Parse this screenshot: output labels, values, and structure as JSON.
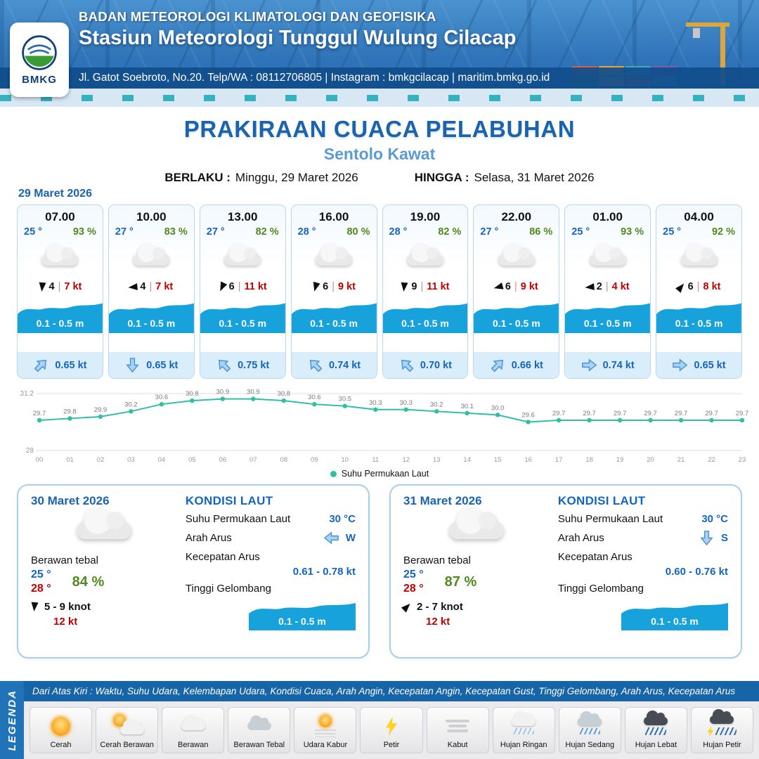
{
  "header": {
    "agency": "BADAN METEOROLOGI KLIMATOLOGI DAN GEOFISIKA",
    "station": "Stasiun Meteorologi Tunggul Wulung Cilacap",
    "address": "Jl. Gatot Soebroto, No.20. Telp/WA : 08112706805 | Instagram : bmkgcilacap | maritim.bmkg.go.id",
    "logo_text": "BMKG"
  },
  "title": {
    "main": "PRAKIRAAN CUACA PELABUHAN",
    "subtitle": "Sentolo Kawat",
    "valid_label": "BERLAKU :",
    "valid_value": "Minggu, 29 Maret 2026",
    "until_label": "HINGGA :",
    "until_value": "Selasa, 31 Maret 2026"
  },
  "colors": {
    "brand_blue": "#1b63ad",
    "subtitle_blue": "#5b9bd5",
    "value_blue": "#1565c0",
    "humidity_green": "#4f8a1e",
    "gust_red": "#c00000",
    "wave_blue": "#17a2dc",
    "current_arrow_blue": "#a8d4f2",
    "sst_line_teal": "#2fbfa4",
    "header_blue": "#2a6cb3"
  },
  "forecast": {
    "date": "29 Maret 2026",
    "cards": [
      {
        "time": "07.00",
        "temp": "25 °",
        "humidity": "93 %",
        "wind_speed": "4",
        "wind_gust": "7 kt",
        "wave_height": "0.1 - 0.5 m",
        "current_speed": "0.65 kt",
        "wind_dir_deg": 185,
        "current_dir_deg": -45
      },
      {
        "time": "10.00",
        "temp": "27 °",
        "humidity": "83 %",
        "wind_speed": "4",
        "wind_gust": "7 kt",
        "wave_height": "0.1 - 0.5 m",
        "current_speed": "0.65 kt",
        "wind_dir_deg": 265,
        "current_dir_deg": 90
      },
      {
        "time": "13.00",
        "temp": "27 °",
        "humidity": "82 %",
        "wind_speed": "6",
        "wind_gust": "11 kt",
        "wave_height": "0.1 - 0.5 m",
        "current_speed": "0.75 kt",
        "wind_dir_deg": 205,
        "current_dir_deg": -135
      },
      {
        "time": "16.00",
        "temp": "28 °",
        "humidity": "80 %",
        "wind_speed": "6",
        "wind_gust": "9 kt",
        "wave_height": "0.1 - 0.5 m",
        "current_speed": "0.74 kt",
        "wind_dir_deg": 195,
        "current_dir_deg": -135
      },
      {
        "time": "19.00",
        "temp": "28 °",
        "humidity": "82 %",
        "wind_speed": "9",
        "wind_gust": "11 kt",
        "wave_height": "0.1 - 0.5 m",
        "current_speed": "0.70 kt",
        "wind_dir_deg": 185,
        "current_dir_deg": -135
      },
      {
        "time": "22.00",
        "temp": "27 °",
        "humidity": "86 %",
        "wind_speed": "6",
        "wind_gust": "9 kt",
        "wave_height": "0.1 - 0.5 m",
        "current_speed": "0.66 kt",
        "wind_dir_deg": 255,
        "current_dir_deg": -45
      },
      {
        "time": "01.00",
        "temp": "25 °",
        "humidity": "93 %",
        "wind_speed": "2",
        "wind_gust": "4 kt",
        "wave_height": "0.1 - 0.5 m",
        "current_speed": "0.74 kt",
        "wind_dir_deg": 265,
        "current_dir_deg": 0
      },
      {
        "time": "04.00",
        "temp": "25 °",
        "humidity": "92 %",
        "wind_speed": "6",
        "wind_gust": "8 kt",
        "wave_height": "0.1 - 0.5 m",
        "current_speed": "0.65 kt",
        "wind_dir_deg": 40,
        "current_dir_deg": 0
      }
    ]
  },
  "chart_data": {
    "type": "line",
    "x": [
      "00",
      "01",
      "02",
      "03",
      "04",
      "05",
      "06",
      "07",
      "08",
      "09",
      "10",
      "11",
      "12",
      "13",
      "14",
      "15",
      "16",
      "17",
      "18",
      "19",
      "20",
      "21",
      "22",
      "23"
    ],
    "series": [
      {
        "name": "Suhu Permukaan Laut",
        "values": [
          29.7,
          29.8,
          29.9,
          30.2,
          30.6,
          30.8,
          30.9,
          30.9,
          30.8,
          30.6,
          30.5,
          30.3,
          30.3,
          30.2,
          30.1,
          30.0,
          29.6,
          29.7,
          29.7,
          29.7,
          29.7,
          29.7,
          29.7,
          29.7
        ]
      }
    ],
    "ylim": [
      28,
      31.2
    ],
    "line_color": "#2fbfa4",
    "grid": true,
    "legend_position": "bottom",
    "title": "",
    "xlabel": "",
    "ylabel": ""
  },
  "days": [
    {
      "date": "30 Maret 2026",
      "condition": "Berawan tebal",
      "temp_min": "25 °",
      "temp_max": "28 °",
      "humidity": "84 %",
      "wind": "5 - 9 knot",
      "gust": "12 kt",
      "wind_dir_deg": 185,
      "sea": {
        "title": "KONDISI LAUT",
        "sst_label": "Suhu Permukaan Laut",
        "sst": "30 °C",
        "current_dir_label": "Arah Arus",
        "current_dir": "W",
        "current_dir_deg": 180,
        "current_speed_label": "Kecepatan Arus",
        "current_speed": "0.61 - 0.78 kt",
        "wave_label": "Tinggi Gelombang",
        "wave": "0.1 - 0.5 m"
      }
    },
    {
      "date": "31 Maret 2026",
      "condition": "Berawan tebal",
      "temp_min": "25 °",
      "temp_max": "28 °",
      "humidity": "87 %",
      "wind": "2 - 7 knot",
      "gust": "12 kt",
      "wind_dir_deg": 45,
      "sea": {
        "title": "KONDISI LAUT",
        "sst_label": "Suhu Permukaan Laut",
        "sst": "30 °C",
        "current_dir_label": "Arah Arus",
        "current_dir": "S",
        "current_dir_deg": 90,
        "current_speed_label": "Kecepatan Arus",
        "current_speed": "0.60 - 0.76 kt",
        "wave_label": "Tinggi Gelombang",
        "wave": "0.1 - 0.5 m"
      }
    }
  ],
  "legend": {
    "title": "LEGENDA",
    "note": "Dari Atas Kiri : Waktu, Suhu Udara, Kelembapan Udara, Kondisi Cuaca, Arah Angin, Kecepatan Angin, Kecepatan Gust, Tinggi Gelombang, Arah Arus, Kecepatan Arus",
    "items": [
      {
        "label": "Cerah",
        "icon": "sun"
      },
      {
        "label": "Cerah Berawan",
        "icon": "sun-cloud"
      },
      {
        "label": "Berawan",
        "icon": "cloud"
      },
      {
        "label": "Berawan Tebal",
        "icon": "cloud-dark"
      },
      {
        "label": "Udara Kabur",
        "icon": "sun-haze"
      },
      {
        "label": "Petir",
        "icon": "lightning"
      },
      {
        "label": "Kabut",
        "icon": "fog"
      },
      {
        "label": "Hujan Ringan",
        "icon": "rain-light"
      },
      {
        "label": "Hujan Sedang",
        "icon": "rain-medium"
      },
      {
        "label": "Hujan Lebat",
        "icon": "rain-heavy"
      },
      {
        "label": "Hujan Petir",
        "icon": "rain-lightning"
      }
    ]
  }
}
